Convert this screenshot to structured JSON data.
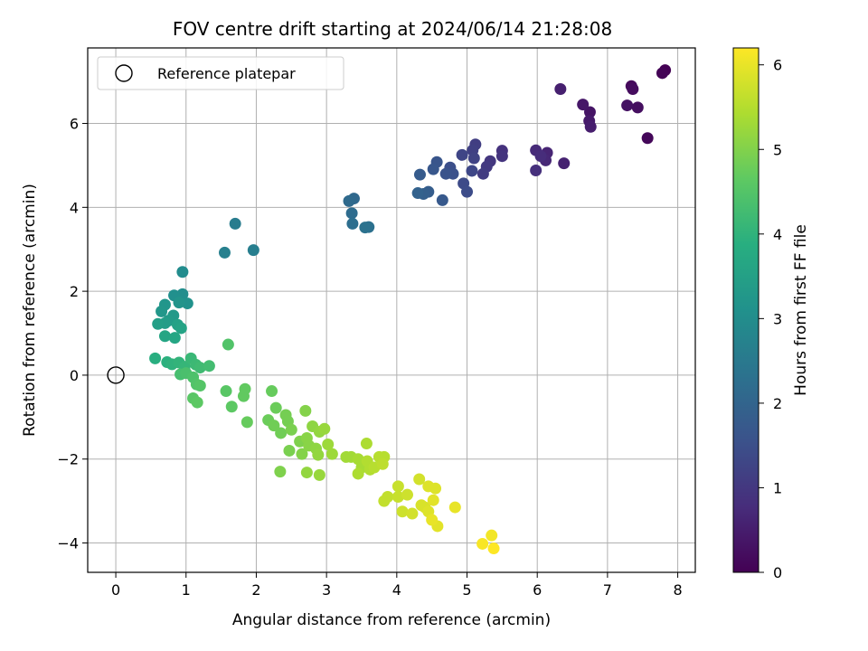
{
  "chart_data": {
    "type": "scatter",
    "title": "FOV centre drift starting at 2024/06/14 21:28:08",
    "xlabel": "Angular distance from reference (arcmin)",
    "ylabel": "Rotation from reference (arcmin)",
    "xlim": [
      -0.4,
      8.25
    ],
    "ylim": [
      -4.7,
      7.8
    ],
    "xticks": [
      0,
      1,
      2,
      3,
      4,
      5,
      6,
      7,
      8
    ],
    "yticks": [
      -4,
      -2,
      0,
      2,
      4,
      6
    ],
    "grid": true,
    "legend": {
      "position": "upper-left",
      "entries": [
        "Reference platepar"
      ]
    },
    "reference_point": {
      "x": 0,
      "y": 0
    },
    "colorbar": {
      "label": "Hours from first FF file",
      "range": [
        0,
        6.2
      ],
      "ticks": [
        0,
        1,
        2,
        3,
        4,
        5,
        6
      ],
      "colormap": "viridis"
    },
    "points": [
      {
        "x": 7.82,
        "y": 7.27,
        "c": 0.0
      },
      {
        "x": 7.78,
        "y": 7.2,
        "c": 0.05
      },
      {
        "x": 7.57,
        "y": 5.65,
        "c": 0.1
      },
      {
        "x": 7.34,
        "y": 6.89,
        "c": 0.15
      },
      {
        "x": 7.36,
        "y": 6.82,
        "c": 0.2
      },
      {
        "x": 7.43,
        "y": 6.38,
        "c": 0.25
      },
      {
        "x": 7.28,
        "y": 6.43,
        "c": 0.3
      },
      {
        "x": 6.75,
        "y": 6.27,
        "c": 0.35
      },
      {
        "x": 6.65,
        "y": 6.45,
        "c": 0.4
      },
      {
        "x": 6.74,
        "y": 6.06,
        "c": 0.45
      },
      {
        "x": 6.76,
        "y": 5.92,
        "c": 0.5
      },
      {
        "x": 6.33,
        "y": 6.82,
        "c": 0.55
      },
      {
        "x": 6.38,
        "y": 5.05,
        "c": 0.6
      },
      {
        "x": 6.14,
        "y": 5.3,
        "c": 0.65
      },
      {
        "x": 6.12,
        "y": 5.12,
        "c": 0.7
      },
      {
        "x": 5.98,
        "y": 5.36,
        "c": 0.75
      },
      {
        "x": 6.05,
        "y": 5.22,
        "c": 0.8
      },
      {
        "x": 5.98,
        "y": 4.88,
        "c": 0.85
      },
      {
        "x": 5.5,
        "y": 5.35,
        "c": 0.9
      },
      {
        "x": 5.5,
        "y": 5.22,
        "c": 0.95
      },
      {
        "x": 5.33,
        "y": 5.1,
        "c": 1.0
      },
      {
        "x": 5.28,
        "y": 4.97,
        "c": 1.05
      },
      {
        "x": 5.23,
        "y": 4.8,
        "c": 1.1
      },
      {
        "x": 5.12,
        "y": 5.5,
        "c": 1.15
      },
      {
        "x": 5.08,
        "y": 5.36,
        "c": 1.2
      },
      {
        "x": 5.1,
        "y": 5.17,
        "c": 1.25
      },
      {
        "x": 4.93,
        "y": 5.25,
        "c": 1.3
      },
      {
        "x": 5.07,
        "y": 4.87,
        "c": 1.35
      },
      {
        "x": 4.95,
        "y": 4.57,
        "c": 1.4
      },
      {
        "x": 5.0,
        "y": 4.37,
        "c": 1.45
      },
      {
        "x": 4.76,
        "y": 4.95,
        "c": 1.5
      },
      {
        "x": 4.8,
        "y": 4.8,
        "c": 1.55
      },
      {
        "x": 4.7,
        "y": 4.8,
        "c": 1.6
      },
      {
        "x": 4.57,
        "y": 5.08,
        "c": 1.65
      },
      {
        "x": 4.52,
        "y": 4.91,
        "c": 1.7
      },
      {
        "x": 4.65,
        "y": 4.17,
        "c": 1.75
      },
      {
        "x": 4.33,
        "y": 4.78,
        "c": 1.8
      },
      {
        "x": 4.45,
        "y": 4.37,
        "c": 1.85
      },
      {
        "x": 4.38,
        "y": 4.32,
        "c": 1.9
      },
      {
        "x": 4.3,
        "y": 4.34,
        "c": 1.95
      },
      {
        "x": 3.39,
        "y": 4.21,
        "c": 2.1
      },
      {
        "x": 3.32,
        "y": 4.15,
        "c": 2.15
      },
      {
        "x": 3.36,
        "y": 3.86,
        "c": 2.2
      },
      {
        "x": 3.37,
        "y": 3.61,
        "c": 2.25
      },
      {
        "x": 3.6,
        "y": 3.53,
        "c": 2.3
      },
      {
        "x": 3.55,
        "y": 3.52,
        "c": 2.35
      },
      {
        "x": 1.7,
        "y": 3.61,
        "c": 2.6
      },
      {
        "x": 1.96,
        "y": 2.98,
        "c": 2.65
      },
      {
        "x": 1.55,
        "y": 2.92,
        "c": 2.7
      },
      {
        "x": 0.95,
        "y": 2.46,
        "c": 3.0
      },
      {
        "x": 0.95,
        "y": 1.93,
        "c": 3.05
      },
      {
        "x": 0.83,
        "y": 1.9,
        "c": 3.1
      },
      {
        "x": 1.02,
        "y": 1.71,
        "c": 3.15
      },
      {
        "x": 0.9,
        "y": 1.73,
        "c": 3.2
      },
      {
        "x": 0.7,
        "y": 1.68,
        "c": 3.25
      },
      {
        "x": 0.65,
        "y": 1.52,
        "c": 3.3
      },
      {
        "x": 0.82,
        "y": 1.42,
        "c": 3.35
      },
      {
        "x": 0.75,
        "y": 1.3,
        "c": 3.4
      },
      {
        "x": 0.7,
        "y": 1.24,
        "c": 3.45
      },
      {
        "x": 0.6,
        "y": 1.22,
        "c": 3.5
      },
      {
        "x": 0.88,
        "y": 1.2,
        "c": 3.55
      },
      {
        "x": 0.93,
        "y": 1.12,
        "c": 3.6
      },
      {
        "x": 0.7,
        "y": 0.93,
        "c": 3.65
      },
      {
        "x": 0.84,
        "y": 0.89,
        "c": 3.7
      },
      {
        "x": 0.56,
        "y": 0.4,
        "c": 3.9
      },
      {
        "x": 0.73,
        "y": 0.31,
        "c": 3.95
      },
      {
        "x": 0.8,
        "y": 0.26,
        "c": 4.0
      },
      {
        "x": 0.9,
        "y": 0.3,
        "c": 4.05
      },
      {
        "x": 0.98,
        "y": 0.2,
        "c": 4.1
      },
      {
        "x": 1.07,
        "y": 0.4,
        "c": 4.15
      },
      {
        "x": 1.14,
        "y": 0.25,
        "c": 4.2
      },
      {
        "x": 1.2,
        "y": 0.18,
        "c": 4.25
      },
      {
        "x": 1.33,
        "y": 0.22,
        "c": 4.3
      },
      {
        "x": 0.92,
        "y": 0.02,
        "c": 4.35
      },
      {
        "x": 1.0,
        "y": 0.05,
        "c": 4.4
      },
      {
        "x": 1.1,
        "y": -0.05,
        "c": 4.45
      },
      {
        "x": 1.15,
        "y": -0.22,
        "c": 4.5
      },
      {
        "x": 1.2,
        "y": -0.25,
        "c": 4.55
      },
      {
        "x": 1.1,
        "y": -0.55,
        "c": 4.6
      },
      {
        "x": 1.16,
        "y": -0.65,
        "c": 4.65
      },
      {
        "x": 1.6,
        "y": 0.73,
        "c": 4.5
      },
      {
        "x": 1.57,
        "y": -0.38,
        "c": 4.6
      },
      {
        "x": 1.65,
        "y": -0.75,
        "c": 4.65
      },
      {
        "x": 1.82,
        "y": -0.5,
        "c": 4.7
      },
      {
        "x": 1.84,
        "y": -0.33,
        "c": 4.7
      },
      {
        "x": 1.87,
        "y": -1.12,
        "c": 4.75
      },
      {
        "x": 2.22,
        "y": -0.38,
        "c": 4.75
      },
      {
        "x": 2.28,
        "y": -0.78,
        "c": 4.8
      },
      {
        "x": 2.17,
        "y": -1.07,
        "c": 4.8
      },
      {
        "x": 2.25,
        "y": -1.2,
        "c": 4.85
      },
      {
        "x": 2.35,
        "y": -1.38,
        "c": 4.85
      },
      {
        "x": 2.42,
        "y": -0.95,
        "c": 4.9
      },
      {
        "x": 2.45,
        "y": -1.1,
        "c": 4.9
      },
      {
        "x": 2.5,
        "y": -1.3,
        "c": 4.95
      },
      {
        "x": 2.47,
        "y": -1.8,
        "c": 4.95
      },
      {
        "x": 2.34,
        "y": -2.3,
        "c": 5.0
      },
      {
        "x": 2.62,
        "y": -1.58,
        "c": 5.0
      },
      {
        "x": 2.65,
        "y": -1.88,
        "c": 5.05
      },
      {
        "x": 2.7,
        "y": -0.85,
        "c": 5.05
      },
      {
        "x": 2.72,
        "y": -1.5,
        "c": 5.1
      },
      {
        "x": 2.75,
        "y": -1.68,
        "c": 5.1
      },
      {
        "x": 2.8,
        "y": -1.22,
        "c": 5.15
      },
      {
        "x": 2.85,
        "y": -1.75,
        "c": 5.15
      },
      {
        "x": 2.88,
        "y": -1.9,
        "c": 5.2
      },
      {
        "x": 2.9,
        "y": -1.35,
        "c": 5.2
      },
      {
        "x": 2.72,
        "y": -2.32,
        "c": 5.2
      },
      {
        "x": 2.9,
        "y": -2.38,
        "c": 5.25
      },
      {
        "x": 2.97,
        "y": -1.28,
        "c": 5.25
      },
      {
        "x": 3.02,
        "y": -1.65,
        "c": 5.3
      },
      {
        "x": 3.08,
        "y": -1.88,
        "c": 5.3
      },
      {
        "x": 3.28,
        "y": -1.95,
        "c": 5.35
      },
      {
        "x": 3.35,
        "y": -1.95,
        "c": 5.35
      },
      {
        "x": 3.45,
        "y": -2.0,
        "c": 5.4
      },
      {
        "x": 3.5,
        "y": -2.2,
        "c": 5.4
      },
      {
        "x": 3.45,
        "y": -2.35,
        "c": 5.45
      },
      {
        "x": 3.57,
        "y": -1.63,
        "c": 5.45
      },
      {
        "x": 3.58,
        "y": -2.05,
        "c": 5.5
      },
      {
        "x": 3.62,
        "y": -2.25,
        "c": 5.5
      },
      {
        "x": 3.68,
        "y": -2.2,
        "c": 5.55
      },
      {
        "x": 3.75,
        "y": -1.95,
        "c": 5.55
      },
      {
        "x": 3.82,
        "y": -1.95,
        "c": 5.55
      },
      {
        "x": 3.8,
        "y": -2.12,
        "c": 5.6
      },
      {
        "x": 3.82,
        "y": -3.0,
        "c": 5.65
      },
      {
        "x": 3.87,
        "y": -2.9,
        "c": 5.65
      },
      {
        "x": 4.02,
        "y": -2.65,
        "c": 5.7
      },
      {
        "x": 4.02,
        "y": -2.9,
        "c": 5.7
      },
      {
        "x": 4.08,
        "y": -3.25,
        "c": 5.75
      },
      {
        "x": 4.15,
        "y": -2.85,
        "c": 5.75
      },
      {
        "x": 4.22,
        "y": -3.3,
        "c": 5.8
      },
      {
        "x": 4.32,
        "y": -2.48,
        "c": 5.8
      },
      {
        "x": 4.35,
        "y": -3.1,
        "c": 5.85
      },
      {
        "x": 4.4,
        "y": -3.15,
        "c": 5.85
      },
      {
        "x": 4.45,
        "y": -2.65,
        "c": 5.9
      },
      {
        "x": 4.45,
        "y": -3.25,
        "c": 5.9
      },
      {
        "x": 4.55,
        "y": -2.7,
        "c": 5.9
      },
      {
        "x": 4.52,
        "y": -2.98,
        "c": 5.95
      },
      {
        "x": 4.58,
        "y": -3.6,
        "c": 5.95
      },
      {
        "x": 4.5,
        "y": -3.45,
        "c": 6.0
      },
      {
        "x": 4.83,
        "y": -3.15,
        "c": 6.0
      },
      {
        "x": 5.35,
        "y": -3.82,
        "c": 6.1
      },
      {
        "x": 5.22,
        "y": -4.02,
        "c": 6.15
      },
      {
        "x": 5.38,
        "y": -4.13,
        "c": 6.2
      }
    ]
  }
}
